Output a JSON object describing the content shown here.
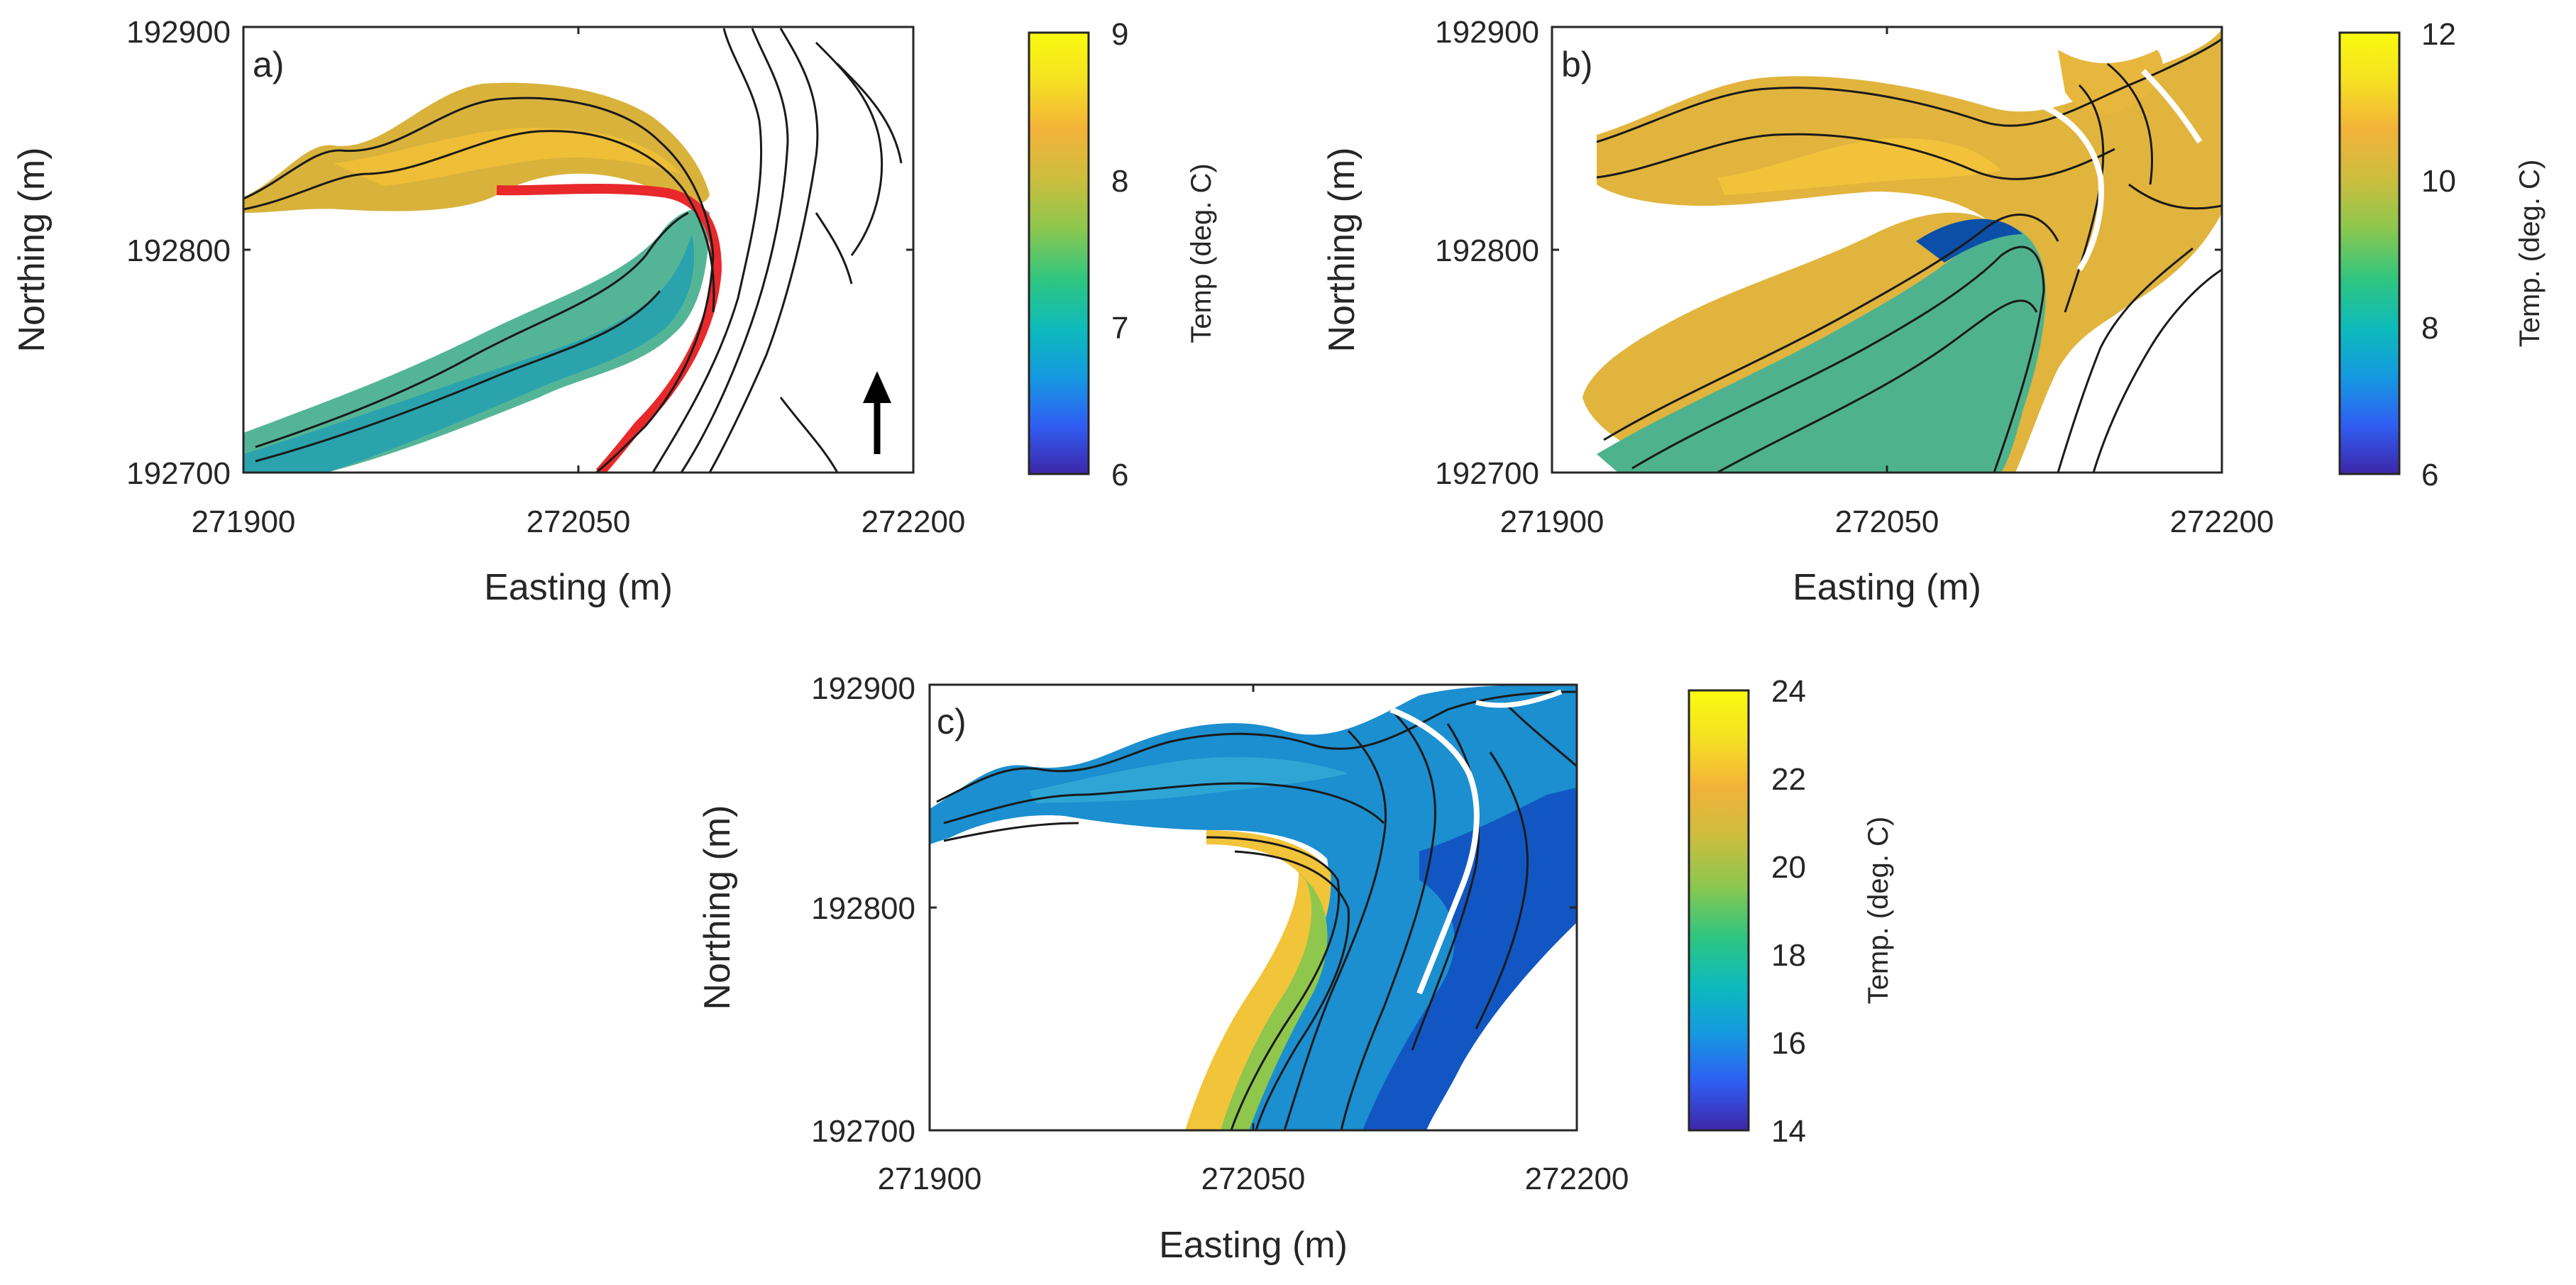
{
  "palette": [
    "#3e26a8",
    "#2f5ef2",
    "#1599e0",
    "#0dbbbb",
    "#2fc580",
    "#8fc74d",
    "#cdbd3e",
    "#f3b23a",
    "#f5e023",
    "#f9fb0e"
  ],
  "chart_data": [
    {
      "type": "heatmap",
      "panel_label": "a)",
      "xlabel": "Easting (m)",
      "ylabel": "Northing (m)",
      "xlim": [
        271900,
        272200
      ],
      "ylim": [
        192700,
        192900
      ],
      "xticks": [
        "271900",
        "272050",
        "272200"
      ],
      "yticks": [
        "192700",
        "192800",
        "192900"
      ],
      "colorbar": {
        "label": "Temp (deg. C)",
        "min": 6,
        "max": 9,
        "ticks": [
          "6",
          "7",
          "8",
          "9"
        ]
      },
      "north_arrow": true,
      "grid": false
    },
    {
      "type": "heatmap",
      "panel_label": "b)",
      "xlabel": "Easting (m)",
      "ylabel": "Northing (m)",
      "xlim": [
        271900,
        272200
      ],
      "ylim": [
        192700,
        192900
      ],
      "xticks": [
        "271900",
        "272050",
        "272200"
      ],
      "yticks": [
        "192700",
        "192800",
        "192900"
      ],
      "colorbar": {
        "label": "Temp. (deg. C)",
        "min": 6,
        "max": 12,
        "ticks": [
          "6",
          "8",
          "10",
          "12"
        ]
      },
      "grid": false
    },
    {
      "type": "heatmap",
      "panel_label": "c)",
      "xlabel": "Easting (m)",
      "ylabel": "Northing (m)",
      "xlim": [
        271900,
        272200
      ],
      "ylim": [
        192700,
        192900
      ],
      "xticks": [
        "271900",
        "272050",
        "272200"
      ],
      "yticks": [
        "192700",
        "192800",
        "192900"
      ],
      "colorbar": {
        "label": "Temp. (deg. C)",
        "min": 14,
        "max": 24,
        "ticks": [
          "14",
          "16",
          "18",
          "20",
          "22",
          "24"
        ]
      },
      "grid": false
    }
  ]
}
